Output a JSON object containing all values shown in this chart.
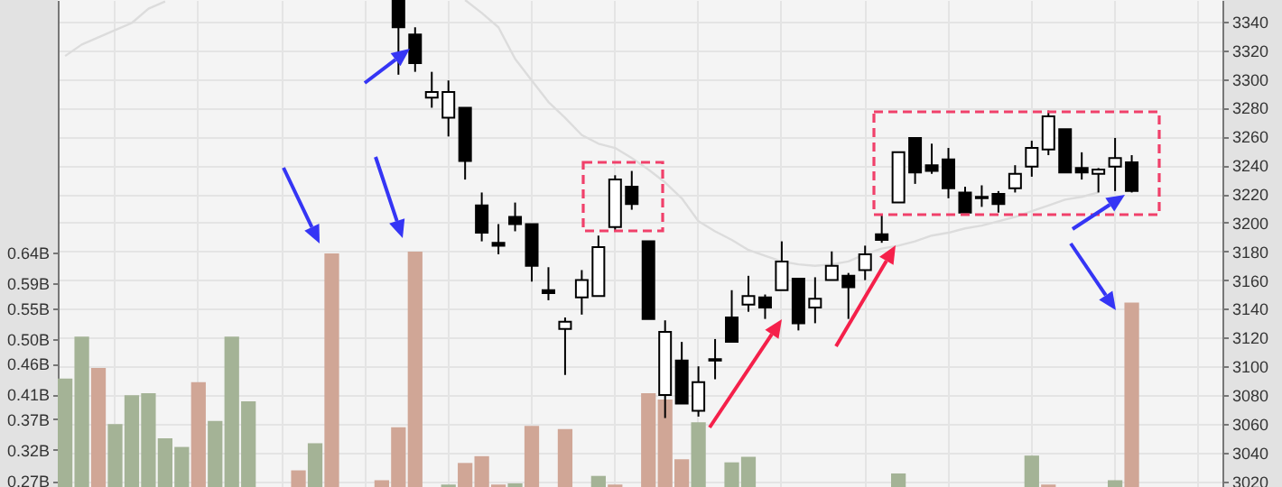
{
  "chart_data": {
    "type": "candlestick",
    "categories": [
      null,
      null,
      null,
      null,
      null,
      null,
      null,
      null,
      null,
      null,
      null,
      null,
      null,
      null,
      null,
      null,
      null,
      null,
      null,
      null,
      null,
      null,
      null,
      null,
      null,
      null,
      null,
      null,
      null,
      null,
      null,
      null,
      null,
      null,
      null,
      null,
      null,
      null,
      null,
      null,
      null,
      null,
      null,
      null,
      null,
      null,
      null,
      null,
      null,
      null,
      null,
      null,
      null,
      null,
      null,
      null,
      null,
      null,
      null,
      null,
      null,
      null,
      null,
      null,
      null,
      null,
      null,
      null,
      null,
      null
    ],
    "ylim": [
      0.26,
      1.05
    ],
    "yticks": [
      {
        "value": 0.27,
        "label": "0.27B"
      },
      {
        "value": 0.32,
        "label": "0.32B"
      },
      {
        "value": 0.37,
        "label": "0.37B"
      },
      {
        "value": 0.41,
        "label": "0.41B"
      },
      {
        "value": 0.46,
        "label": "0.46B"
      },
      {
        "value": 0.5,
        "label": "0.50B"
      },
      {
        "value": 0.55,
        "label": "0.55B"
      },
      {
        "value": 0.59,
        "label": "0.59B"
      },
      {
        "value": 0.64,
        "label": "0.64B"
      }
    ],
    "y2lim": [
      3016,
      3355
    ],
    "y2ticks": [
      3020,
      3040,
      3060,
      3080,
      3100,
      3120,
      3140,
      3160,
      3180,
      3200,
      3220,
      3240,
      3260,
      3280,
      3300,
      3320,
      3340
    ],
    "grid": true,
    "series": [
      {
        "type": "bar",
        "axis": "y",
        "values": [
          0.436,
          0.504,
          0.453,
          0.362,
          0.409,
          0.412,
          0.339,
          0.325,
          0.43,
          0.367,
          0.504,
          0.399,
          null,
          null,
          0.287,
          0.331,
          0.639,
          null,
          null,
          0.271,
          0.357,
          0.642,
          null,
          0.264,
          0.299,
          0.31,
          0.264,
          0.266,
          0.359,
          null,
          0.354,
          null,
          0.278,
          0.264,
          null,
          0.412,
          0.402,
          0.305,
          0.365,
          null,
          0.3,
          0.309,
          null,
          null,
          null,
          null,
          null,
          null,
          null,
          null,
          0.282,
          null,
          null,
          null,
          null,
          null,
          null,
          null,
          0.311,
          0.264,
          null,
          null,
          null,
          0.271,
          0.559,
          null,
          null,
          null,
          null,
          null
        ],
        "colors": [
          "#a4b396",
          "#a4b396",
          "#d0a696",
          "#a4b396",
          "#a4b396",
          "#a4b396",
          "#a4b396",
          "#a4b396",
          "#d0a696",
          "#a4b396",
          "#a4b396",
          "#a4b396",
          null,
          null,
          "#d0a696",
          "#a4b396",
          "#d0a696",
          null,
          null,
          "#d0a696",
          "#d0a696",
          "#d0a696",
          null,
          "#a4b396",
          "#d0a696",
          "#d0a696",
          "#d0a696",
          "#a4b396",
          "#d0a696",
          null,
          "#d0a696",
          null,
          "#a4b396",
          "#d0a696",
          null,
          "#d0a696",
          "#d0a696",
          "#d0a696",
          "#a4b396",
          null,
          "#a4b396",
          "#a4b396",
          null,
          null,
          null,
          null,
          null,
          null,
          null,
          null,
          "#a4b396",
          null,
          null,
          null,
          null,
          null,
          null,
          null,
          "#a4b396",
          "#d0a696",
          null,
          null,
          null,
          "#a4b396",
          "#d0a696",
          null,
          null,
          null,
          null,
          null
        ]
      },
      {
        "type": "line",
        "axis": "y2",
        "color": "#dcdcdc",
        "values": [
          3316,
          3324,
          3329,
          3334,
          3339,
          3349,
          3354,
          null,
          null,
          null,
          null,
          null,
          null,
          null,
          null,
          null,
          null,
          null,
          null,
          null,
          null,
          null,
          null,
          null,
          3355,
          3346,
          3336,
          3314,
          3299,
          3284,
          3273,
          3261,
          3255,
          3252,
          3245,
          3237,
          3228,
          3217,
          3201,
          3194,
          3188,
          3181,
          3177,
          3173,
          3171,
          3170,
          3171,
          3173,
          3178,
          3182,
          3184,
          3187,
          3191,
          3193,
          3196,
          3198,
          3201,
          3204,
          3208,
          3212,
          3216,
          3218,
          3221,
          null,
          null,
          null,
          null,
          null,
          null,
          null
        ]
      },
      {
        "axis": "y2",
        "ohlc": [
          null,
          null,
          null,
          null,
          null,
          null,
          null,
          null,
          null,
          null,
          null,
          null,
          null,
          null,
          null,
          null,
          null,
          null,
          null,
          null,
          [
            3355,
            3355,
            3303,
            3336
          ],
          [
            3331,
            3336,
            3305,
            3311
          ],
          [
            3287,
            3305,
            3280,
            3291
          ],
          [
            3273,
            3299,
            3260,
            3291
          ],
          [
            3280,
            3280,
            3230,
            3243
          ],
          [
            3212,
            3221,
            3187,
            3193
          ],
          [
            3186,
            3199,
            3178,
            3184
          ],
          [
            3204,
            3214,
            3194,
            3199
          ],
          [
            3199,
            3199,
            3159,
            3170
          ],
          [
            3153,
            3169,
            3146,
            3151
          ],
          [
            3126,
            3134,
            3094,
            3131
          ],
          [
            3148,
            3167,
            3136,
            3160
          ],
          [
            3149,
            3191,
            3149,
            3183
          ],
          [
            3197,
            3233,
            3195,
            3230
          ],
          [
            3225,
            3236,
            3209,
            3213
          ],
          [
            3187,
            3187,
            3133,
            3133
          ],
          [
            3080,
            3132,
            3064,
            3124
          ],
          [
            3104,
            3117,
            3074,
            3074
          ],
          [
            3069,
            3100,
            3065,
            3089
          ],
          [
            3105,
            3119,
            3091,
            3104
          ],
          [
            3134,
            3153,
            3117,
            3117
          ],
          [
            3143,
            3163,
            3138,
            3149
          ],
          [
            3148,
            3150,
            3133,
            3141
          ],
          [
            3153,
            3187,
            3153,
            3173
          ],
          [
            3161,
            3161,
            3125,
            3130
          ],
          [
            3141,
            3162,
            3130,
            3147
          ],
          [
            3160,
            3180,
            3160,
            3170
          ],
          [
            3163,
            3165,
            3133,
            3155
          ],
          [
            3167,
            3184,
            3160,
            3178
          ],
          [
            3192,
            3205,
            3186,
            3188
          ],
          [
            3214,
            3249,
            3214,
            3249
          ],
          [
            3259,
            3259,
            3227,
            3235
          ],
          [
            3240,
            3255,
            3234,
            3236
          ],
          [
            3244,
            3252,
            3217,
            3224
          ],
          [
            3221,
            3225,
            3207,
            3207
          ],
          [
            3218,
            3226,
            3211,
            3217
          ],
          [
            3220,
            3222,
            3207,
            3213
          ],
          [
            3224,
            3240,
            3221,
            3234
          ],
          [
            3239,
            3257,
            3232,
            3252
          ],
          [
            3251,
            3278,
            3247,
            3274
          ],
          [
            3265,
            3265,
            3235,
            3235
          ],
          [
            3238,
            3249,
            3230,
            3235
          ],
          [
            3234,
            3238,
            3221,
            3237
          ],
          [
            3239,
            3259,
            3222,
            3245
          ],
          [
            3242,
            3247,
            3221,
            3222
          ],
          null,
          null,
          null,
          null,
          null
        ]
      }
    ]
  }
}
